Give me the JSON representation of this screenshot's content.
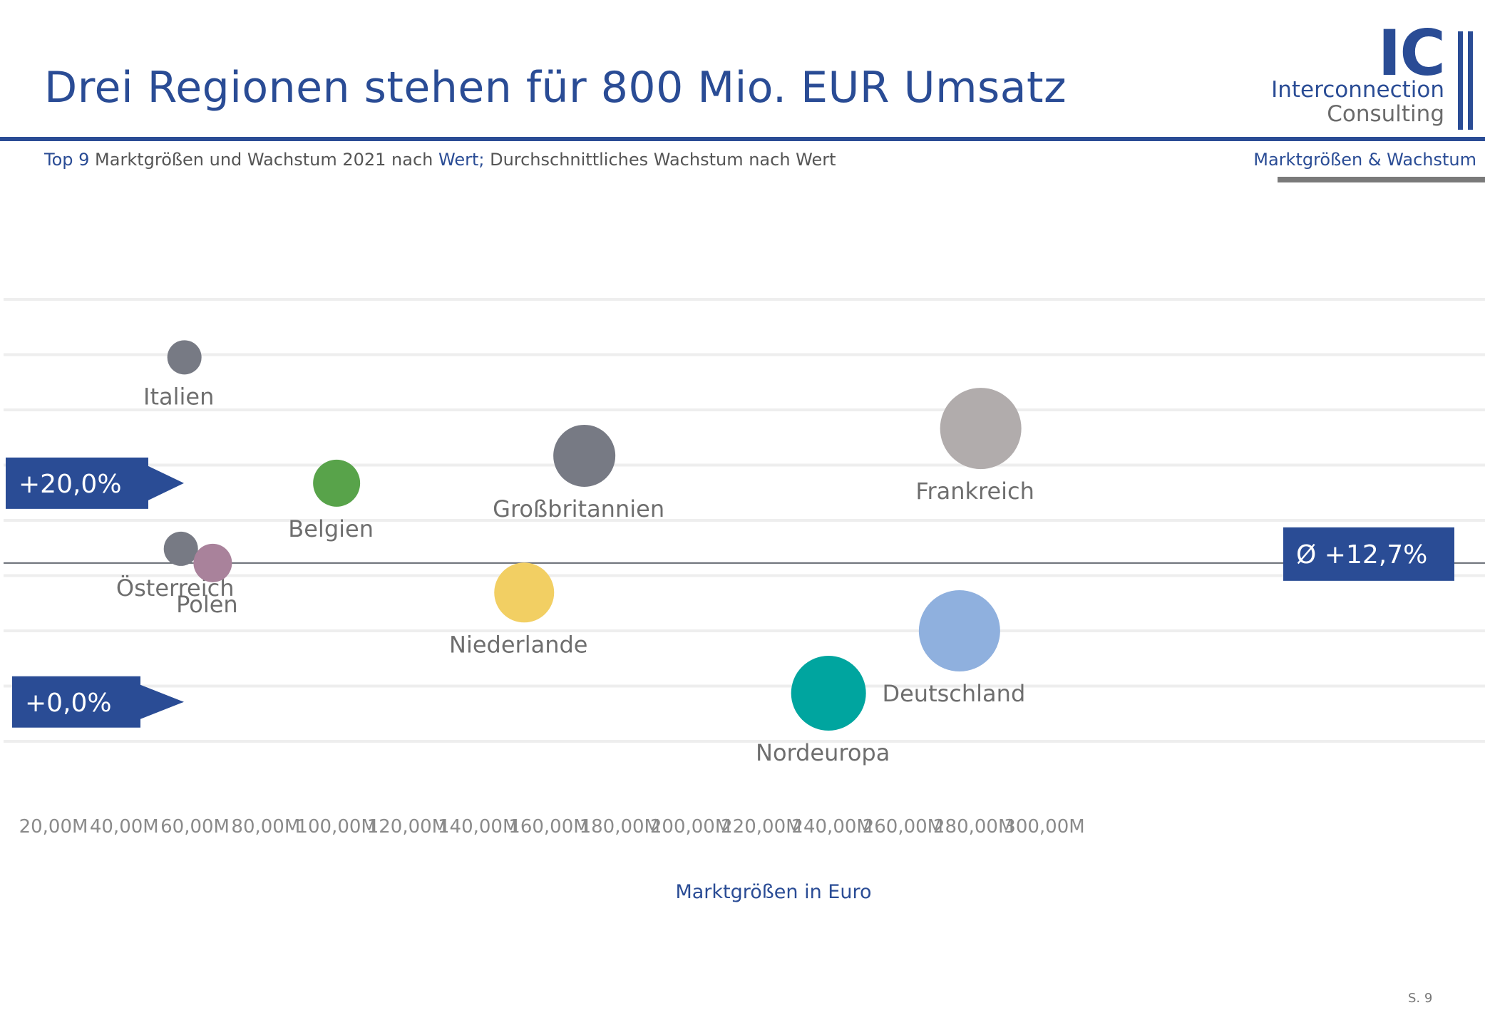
{
  "header": {
    "title": "Drei Regionen stehen für 800 Mio. EUR Umsatz",
    "subtitle_parts": [
      {
        "text": "Top 9",
        "highlight": true
      },
      {
        "text": " Marktgrößen und Wachstum 2021 nach ",
        "highlight": false
      },
      {
        "text": "Wert;",
        "highlight": true
      },
      {
        "text": " Durchschnittliches Wachstum nach Wert",
        "highlight": false
      }
    ],
    "section_label": "Marktgrößen & Wachstum"
  },
  "logo": {
    "letters": "IC",
    "line1": "Interconnection",
    "line2": "Consulting"
  },
  "footer": {
    "page_number": "S. 9"
  },
  "colors": {
    "brand_blue": "#2a4c95",
    "grid": "#eeeeee",
    "avg_line": "#666b73",
    "label_text": "#6e6e6e"
  },
  "chart_data": {
    "type": "scatter",
    "bubble": true,
    "xlabel": "Marktgrößen in Euro",
    "ylabel": "",
    "x_tick_labels": [
      "20,00M",
      "40,00M",
      "60,00M",
      "80,00M",
      "100,00M",
      "120,00M",
      "140,00M",
      "160,00M",
      "180,00M",
      "200,00M",
      "220,00M",
      "240,00M",
      "260,00M",
      "280,00M",
      "300,00M"
    ],
    "x_ticks": [
      20,
      40,
      60,
      80,
      100,
      120,
      140,
      160,
      180,
      200,
      220,
      240,
      260,
      280,
      300
    ],
    "xlim": [
      10,
      303
    ],
    "ylim": [
      -3.6,
      36.8
    ],
    "grid": true,
    "reference_markers": [
      {
        "label": "+20,0%",
        "y": 20.0
      },
      {
        "label": "+0,0%",
        "y": 0.0
      }
    ],
    "average_line": {
      "label": "Ø +12,7%",
      "y": 12.7
    },
    "points": [
      {
        "name": "Italien",
        "x": 57,
        "y": 31.5,
        "size": 16,
        "color": "#777a84"
      },
      {
        "name": "Belgien",
        "x": 100,
        "y": 20.0,
        "size": 22,
        "color": "#58a34a"
      },
      {
        "name": "Großbritannien",
        "x": 170,
        "y": 22.5,
        "size": 29,
        "color": "#777a84"
      },
      {
        "name": "Frankreich",
        "x": 282,
        "y": 25.0,
        "size": 38,
        "color": "#b1acac"
      },
      {
        "name": "Österreich",
        "x": 56,
        "y": 14.0,
        "size": 16,
        "color": "#777a84"
      },
      {
        "name": "Polen",
        "x": 65,
        "y": 12.7,
        "size": 18,
        "color": "#a9829b"
      },
      {
        "name": "Niederlande",
        "x": 153,
        "y": 10.0,
        "size": 28,
        "color": "#f2cf63"
      },
      {
        "name": "Deutschland",
        "x": 276,
        "y": 6.5,
        "size": 38,
        "color": "#8fb0de"
      },
      {
        "name": "Nordeuropa",
        "x": 239,
        "y": 0.8,
        "size": 35,
        "color": "#00a59f"
      }
    ]
  }
}
